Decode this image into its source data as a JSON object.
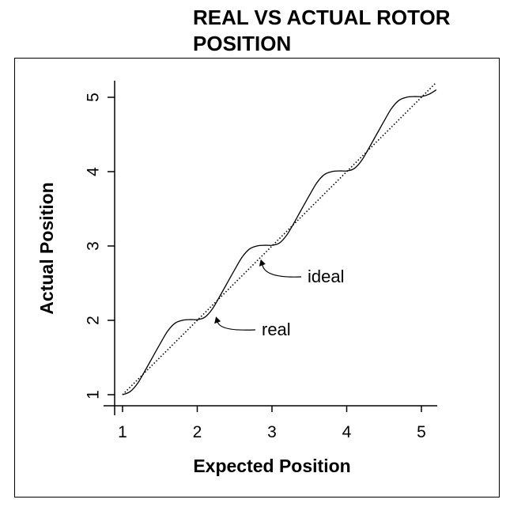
{
  "page": {
    "title_line1": "REAL VS ACTUAL ROTOR",
    "title_line2": "POSITION"
  },
  "chart_data": {
    "type": "line",
    "title": "REAL VS ACTUAL ROTOR POSITION",
    "xlabel": "Expected Position",
    "ylabel": "Actual Position",
    "xlim": [
      0.9,
      5.2
    ],
    "ylim": [
      0.85,
      5.2
    ],
    "x_ticks": [
      1,
      2,
      3,
      4,
      5
    ],
    "y_ticks": [
      1,
      2,
      3,
      4,
      5
    ],
    "x_tick_labels": [
      "1",
      "2",
      "3",
      "4",
      "5"
    ],
    "y_tick_labels": [
      "1",
      "2",
      "3",
      "4",
      "5"
    ],
    "grid": false,
    "legend": "none",
    "series": [
      {
        "name": "ideal",
        "style": "dotted",
        "color": "#000000",
        "x": [
          1.0,
          5.2
        ],
        "y": [
          1.0,
          5.2
        ]
      },
      {
        "name": "real",
        "style": "solid",
        "color": "#000000",
        "x": [
          1.0,
          1.1,
          1.2,
          1.3,
          1.4,
          1.5,
          1.6,
          1.7,
          1.8,
          1.9,
          2.0,
          2.1,
          2.2,
          2.3,
          2.4,
          2.5,
          2.6,
          2.7,
          2.8,
          2.9,
          3.0,
          3.1,
          3.2,
          3.3,
          3.4,
          3.5,
          3.6,
          3.7,
          3.8,
          3.9,
          4.0,
          4.1,
          4.2,
          4.3,
          4.4,
          4.5,
          4.6,
          4.7,
          4.8,
          4.9,
          5.0,
          5.1,
          5.2
        ],
        "y": [
          1.0,
          1.04,
          1.15,
          1.32,
          1.5,
          1.68,
          1.85,
          1.96,
          2.0,
          2.01,
          2.01,
          2.04,
          2.15,
          2.32,
          2.5,
          2.68,
          2.85,
          2.96,
          3.0,
          3.01,
          3.01,
          3.04,
          3.15,
          3.32,
          3.5,
          3.68,
          3.85,
          3.96,
          4.0,
          4.01,
          4.01,
          4.04,
          4.15,
          4.32,
          4.5,
          4.68,
          4.85,
          4.96,
          5.0,
          5.01,
          5.01,
          5.04,
          5.1
        ]
      }
    ],
    "annotations": [
      {
        "text": "ideal",
        "points_to": [
          2.85,
          2.82
        ]
      },
      {
        "text": "real",
        "points_to": [
          2.25,
          2.05
        ]
      }
    ]
  }
}
